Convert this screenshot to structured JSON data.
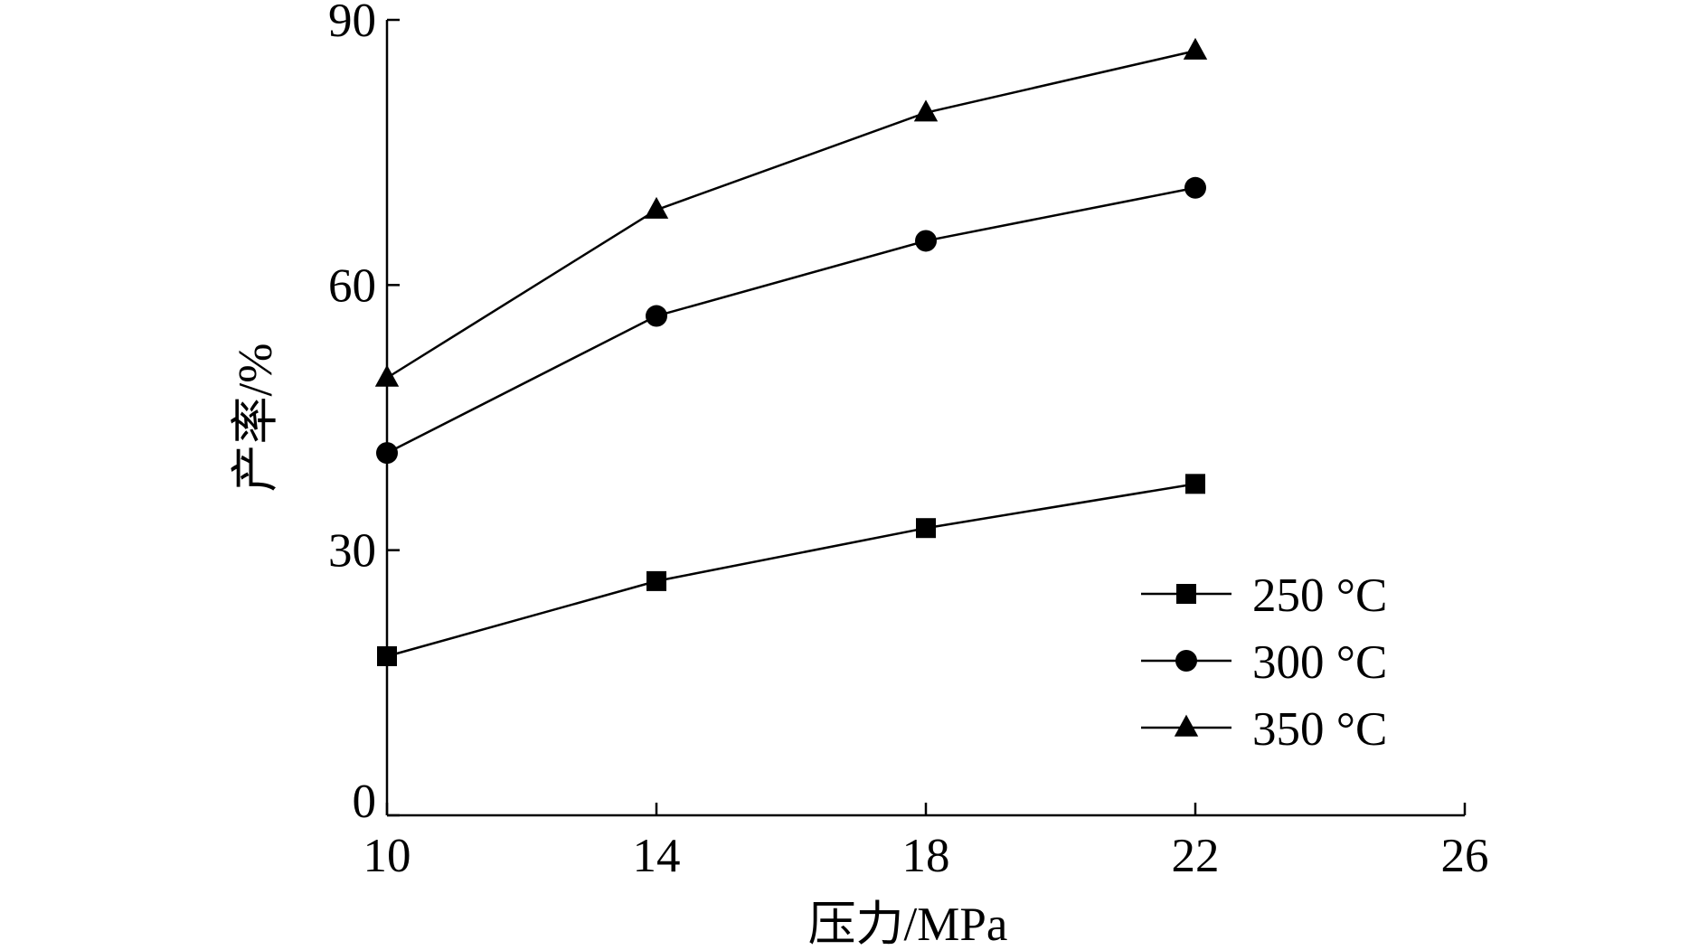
{
  "chart_data": {
    "type": "line",
    "title": "",
    "xlabel": "压力/MPa",
    "ylabel": "产率/%",
    "x": [
      10,
      14,
      18,
      22
    ],
    "xlim": [
      10,
      26
    ],
    "ylim": [
      0,
      90
    ],
    "xticks": [
      "10",
      "14",
      "18",
      "22",
      "26"
    ],
    "yticks": [
      "0",
      "30",
      "60",
      "90"
    ],
    "grid": false,
    "legend_position": "bottom-right",
    "series": [
      {
        "name": "250 °C",
        "marker": "square",
        "values": [
          18,
          26.5,
          32.5,
          37.5
        ]
      },
      {
        "name": "300 °C",
        "marker": "circle",
        "values": [
          41,
          56.5,
          65,
          71
        ]
      },
      {
        "name": "350 °C",
        "marker": "triangle",
        "values": [
          49.5,
          68.5,
          79.5,
          86.5
        ]
      }
    ],
    "colors": {
      "line": "#000000",
      "marker": "#000000"
    }
  }
}
